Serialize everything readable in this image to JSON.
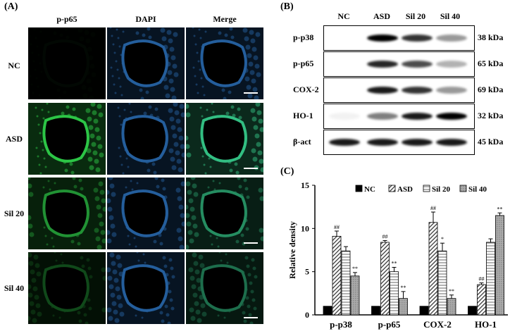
{
  "panels": {
    "a": "(A)",
    "b": "(B)",
    "c": "(C)"
  },
  "microscopy": {
    "columns": [
      "p-p65",
      "DAPI",
      "Merge"
    ],
    "rows": [
      "NC",
      "ASD",
      "Sil 20",
      "Sil 40"
    ]
  },
  "western_blot": {
    "lanes": [
      "NC",
      "ASD",
      "Sil 20",
      "Sil 40"
    ],
    "proteins": [
      {
        "name": "p-p38",
        "size": "38 kDa",
        "intensity": [
          0.0,
          1.0,
          0.8,
          0.4
        ]
      },
      {
        "name": "p-p65",
        "size": "65 kDa",
        "intensity": [
          0.0,
          0.85,
          0.7,
          0.3
        ]
      },
      {
        "name": "COX-2",
        "size": "69 kDa",
        "intensity": [
          0.0,
          0.9,
          0.8,
          0.4
        ]
      },
      {
        "name": "HO-1",
        "size": "32 kDa",
        "intensity": [
          0.05,
          0.5,
          0.9,
          1.0
        ]
      },
      {
        "name": "β-act",
        "size": "45 kDa",
        "intensity": [
          0.9,
          0.9,
          0.9,
          0.9
        ]
      }
    ]
  },
  "chart_data": {
    "type": "bar",
    "categories": [
      "p-p38",
      "p-p65",
      "COX-2",
      "HO-1"
    ],
    "series": [
      {
        "name": "NC",
        "values": [
          1.0,
          1.0,
          1.0,
          1.0
        ],
        "errors": [
          0,
          0,
          0,
          0
        ],
        "marks": [
          "",
          "",
          "",
          ""
        ]
      },
      {
        "name": "ASD",
        "values": [
          9.1,
          8.4,
          10.7,
          3.5
        ],
        "errors": [
          0.6,
          0.2,
          1.2,
          0.2
        ],
        "marks": [
          "##",
          "##",
          "##",
          "##"
        ]
      },
      {
        "name": "Sil 20",
        "values": [
          7.4,
          5.0,
          7.4,
          8.4
        ],
        "errors": [
          0.5,
          0.5,
          0.9,
          0.4
        ],
        "marks": [
          "",
          "**",
          "*",
          ""
        ]
      },
      {
        "name": "Sil 40",
        "values": [
          4.5,
          1.9,
          1.9,
          11.5
        ],
        "errors": [
          0.4,
          0.8,
          0.4,
          0.3
        ],
        "marks": [
          "**",
          "**",
          "**",
          "**"
        ]
      }
    ],
    "ylabel": "Relative density",
    "xlabel": "",
    "ylim": [
      0,
      15
    ],
    "yticks": [
      "0",
      "5",
      "10",
      "15"
    ],
    "legend_position": "top"
  }
}
